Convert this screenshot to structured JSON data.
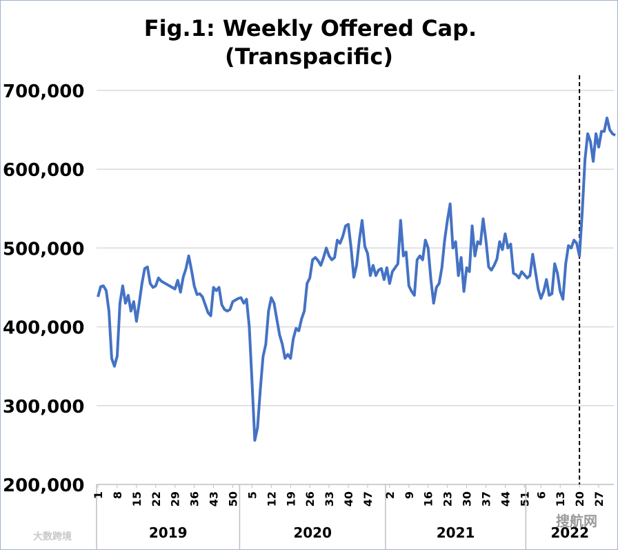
{
  "chart_data": {
    "type": "line",
    "title": "Fig.1: Weekly Offered Cap.",
    "subtitle": "(Transpacific)",
    "groups": [
      {
        "name": "2019",
        "categories": [
          "1",
          null,
          null,
          null,
          null,
          null,
          null,
          "8",
          null,
          null,
          null,
          null,
          null,
          null,
          "15",
          null,
          null,
          null,
          null,
          null,
          null,
          "22",
          null,
          null,
          null,
          null,
          null,
          null,
          "29",
          null,
          null,
          null,
          null,
          null,
          null,
          "36",
          null,
          null,
          null,
          null,
          null,
          null,
          "43",
          null,
          null,
          null,
          null,
          null,
          null,
          "50",
          null,
          null
        ]
      },
      {
        "name": "2020",
        "categories": [
          null,
          null,
          null,
          null,
          "5",
          null,
          null,
          null,
          null,
          null,
          null,
          "12",
          null,
          null,
          null,
          null,
          null,
          null,
          "19",
          null,
          null,
          null,
          null,
          null,
          null,
          "26",
          null,
          null,
          null,
          null,
          null,
          null,
          "33",
          null,
          null,
          null,
          null,
          null,
          null,
          "40",
          null,
          null,
          null,
          null,
          null,
          null,
          "47",
          null,
          null,
          null,
          null,
          null,
          null
        ]
      },
      {
        "name": "2021",
        "categories": [
          null,
          "2",
          null,
          null,
          null,
          null,
          null,
          null,
          "9",
          null,
          null,
          null,
          null,
          null,
          null,
          "16",
          null,
          null,
          null,
          null,
          null,
          null,
          "23",
          null,
          null,
          null,
          null,
          null,
          null,
          "30",
          null,
          null,
          null,
          null,
          null,
          null,
          "37",
          null,
          null,
          null,
          null,
          null,
          null,
          "44",
          null,
          null,
          null,
          null,
          null,
          null,
          "51"
        ]
      },
      {
        "name": "2022",
        "categories": [
          null,
          null,
          null,
          null,
          null,
          "6",
          null,
          null,
          null,
          null,
          null,
          null,
          "13",
          null,
          null,
          null,
          null,
          null,
          null,
          "20",
          null,
          null,
          null,
          null,
          null,
          null,
          "27",
          null,
          null,
          null,
          null,
          null
        ]
      }
    ],
    "series": [
      {
        "color": "#4472c4",
        "values": [
          438000,
          451000,
          452000,
          446000,
          420000,
          360000,
          350000,
          363000,
          430000,
          452000,
          430000,
          440000,
          420000,
          432000,
          407000,
          430000,
          455000,
          474000,
          476000,
          455000,
          450000,
          452000,
          462000,
          458000,
          456000,
          454000,
          452000,
          450000,
          448000,
          459000,
          444000,
          463000,
          474000,
          490000,
          472000,
          452000,
          441000,
          442000,
          438000,
          428000,
          418000,
          414000,
          450000,
          446000,
          450000,
          428000,
          422000,
          420000,
          422000,
          432000,
          434000,
          436000,
          437000,
          430000,
          435000,
          400000,
          330000,
          256000,
          272000,
          320000,
          362000,
          378000,
          420000,
          437000,
          430000,
          410000,
          390000,
          378000,
          360000,
          365000,
          360000,
          385000,
          398000,
          395000,
          410000,
          420000,
          455000,
          462000,
          485000,
          488000,
          484000,
          478000,
          488000,
          500000,
          490000,
          485000,
          488000,
          510000,
          506000,
          515000,
          528000,
          530000,
          500000,
          463000,
          478000,
          510000,
          535000,
          502000,
          493000,
          465000,
          478000,
          465000,
          472000,
          474000,
          460000,
          475000,
          455000,
          470000,
          475000,
          480000,
          535000,
          490000,
          495000,
          452000,
          445000,
          440000,
          485000,
          490000,
          485000,
          510000,
          500000,
          460000,
          430000,
          450000,
          455000,
          475000,
          510000,
          535000,
          556000,
          500000,
          508000,
          465000,
          488000,
          445000,
          475000,
          470000,
          528000,
          490000,
          508000,
          505000,
          537000,
          510000,
          476000,
          472000,
          478000,
          486000,
          508000,
          498000,
          518000,
          500000,
          505000,
          468000,
          466000,
          462000,
          470000,
          466000,
          462000,
          465000,
          492000,
          470000,
          448000,
          436000,
          445000,
          460000,
          440000,
          442000,
          480000,
          468000,
          445000,
          435000,
          480000,
          503000,
          500000,
          510000,
          506000,
          490000,
          545000,
          612000,
          645000,
          635000,
          610000,
          645000,
          628000,
          648000,
          648000,
          665000,
          650000,
          645000,
          643000
        ]
      }
    ],
    "ylim": [
      200000,
      700000
    ],
    "yticks": [
      {
        "value": 200000,
        "label": "200,000"
      },
      {
        "value": 300000,
        "label": "300,000"
      },
      {
        "value": 400000,
        "label": "400,000"
      },
      {
        "value": 500000,
        "label": "500,000"
      },
      {
        "value": 600000,
        "label": "600,000"
      },
      {
        "value": 700000,
        "label": "700,000"
      }
    ],
    "grid": true,
    "vertical_line_group": "2022",
    "vertical_line_category": "20",
    "watermarks": [
      "大数跨境",
      "搜航网"
    ]
  }
}
